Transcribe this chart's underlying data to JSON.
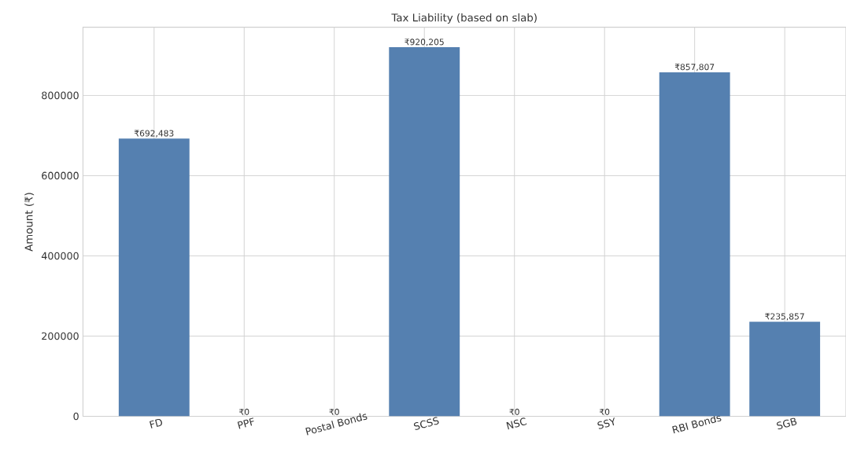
{
  "chart_data": {
    "type": "bar",
    "title": "Tax Liability (based on slab)",
    "ylabel": "Amount (₹)",
    "categories": [
      "FD",
      "PPF",
      "Postal Bonds",
      "SCSS",
      "NSC",
      "SSY",
      "RBI Bonds",
      "SGB"
    ],
    "values": [
      692483,
      0,
      0,
      920205,
      0,
      0,
      857807,
      235857
    ],
    "value_labels": [
      "₹692,483",
      "₹0",
      "₹0",
      "₹920,205",
      "₹0",
      "₹0",
      "₹857,807",
      "₹235,857"
    ],
    "color": "#5580b0",
    "ylim": [
      0,
      970000
    ],
    "yticks": [
      0,
      200000,
      400000,
      600000,
      800000
    ],
    "grid": true
  }
}
